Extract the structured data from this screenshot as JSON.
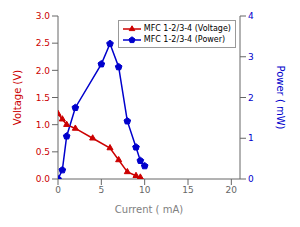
{
  "chart_data": {
    "type": "line",
    "xlabel": "Current ( mA)",
    "ylabel": "Voltage (V)",
    "y2label": "Power ( mW)",
    "xlim": [
      0,
      21
    ],
    "xticks": [
      0,
      5,
      10,
      15,
      20
    ],
    "ylim": [
      0,
      3.0
    ],
    "yticks": [
      {
        "value": 0,
        "label": "0.0"
      },
      0.5,
      {
        "value": 1,
        "label": "1.0"
      },
      1.5,
      {
        "value": 2,
        "label": "2.0"
      },
      2.5,
      {
        "value": 3,
        "label": "3.0"
      }
    ],
    "y2lim": [
      0,
      4.0
    ],
    "y2ticks": [
      0,
      1,
      2,
      3,
      4
    ],
    "grid": false,
    "legend": "upper right",
    "series": [
      {
        "name": "MFC 1-2/3-4 (Voltage)",
        "color": "#cc0000",
        "marker": "triangle",
        "x": [
          0,
          0.5,
          1,
          2,
          4,
          6,
          7,
          8,
          9,
          9.5
        ],
        "values": [
          1.2,
          1.1,
          1.0,
          0.93,
          0.75,
          0.57,
          0.35,
          0.13,
          0.06,
          0.03
        ]
      },
      {
        "name": "MFC 1-2/3-4 (Power)",
        "color": "#0000cc",
        "marker": "pentagon",
        "axis": "y2",
        "x": [
          0,
          0.5,
          1,
          2,
          5,
          6,
          7,
          8,
          9,
          9.5,
          10
        ],
        "values": [
          0,
          0.22,
          1.05,
          1.75,
          2.82,
          3.32,
          2.75,
          1.42,
          0.78,
          0.45,
          0.32
        ]
      }
    ]
  }
}
